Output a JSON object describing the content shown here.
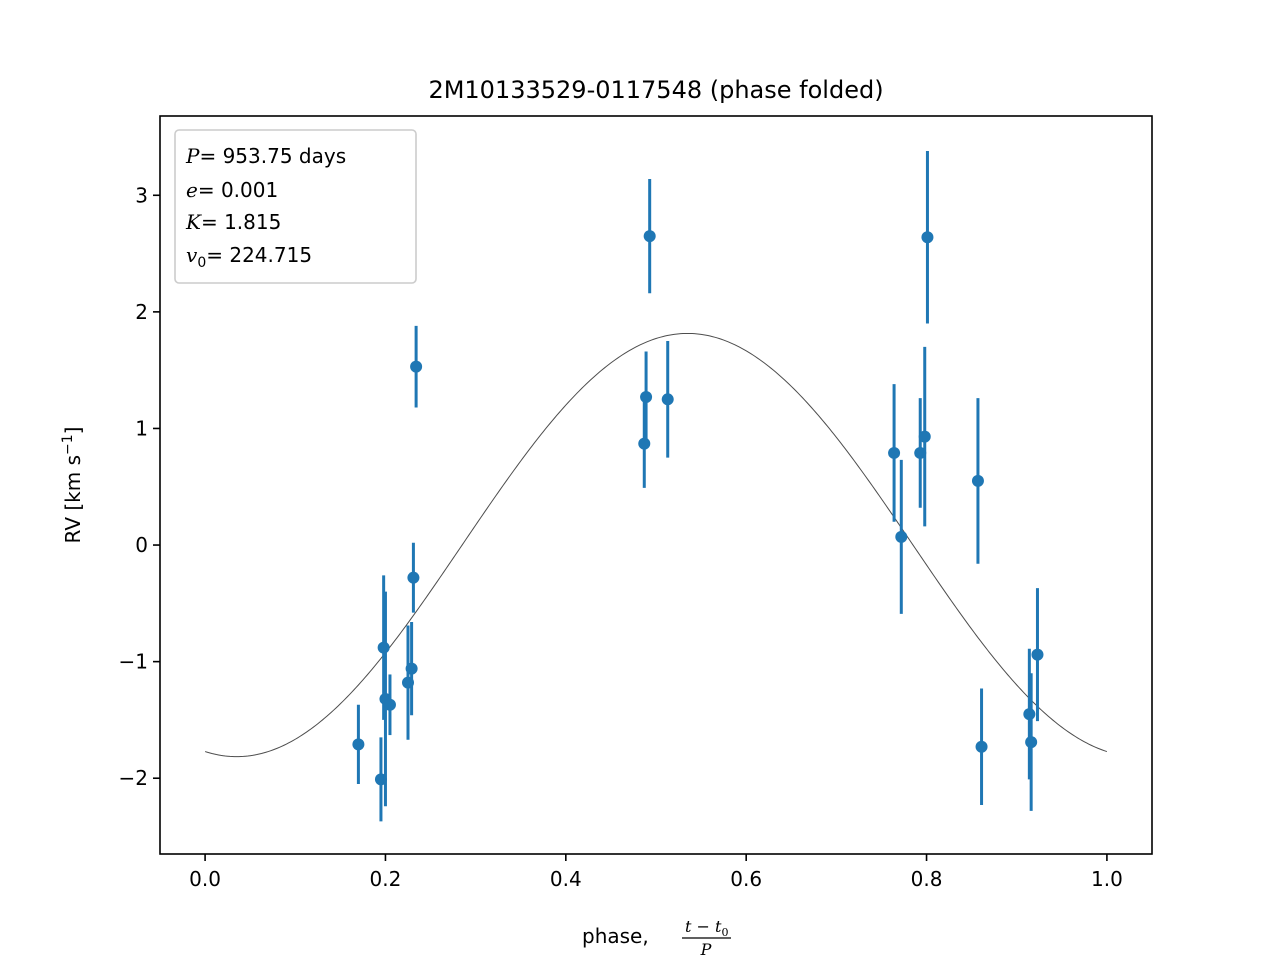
{
  "chart_data": {
    "type": "scatter",
    "title": "2M10133529-0117548 (phase folded)",
    "xlabel": "phase, ",
    "xlabel_frac": {
      "num": "t − t",
      "num_sub": "0",
      "den": "P"
    },
    "ylabel": "RV [km s",
    "ylabel_sup": "−1",
    "ylabel_close": "]",
    "xlim": [
      -0.05,
      1.05
    ],
    "ylim": [
      -2.65,
      3.68
    ],
    "xticks": [
      0.0,
      0.2,
      0.4,
      0.6,
      0.8,
      1.0
    ],
    "xtick_labels": [
      "0.0",
      "0.2",
      "0.4",
      "0.6",
      "0.8",
      "1.0"
    ],
    "yticks": [
      -2,
      -1,
      0,
      1,
      2,
      3
    ],
    "ytick_labels": [
      "−2",
      "−1",
      "0",
      "1",
      "2",
      "3"
    ],
    "params": {
      "P_label": "P",
      "P_value": "= 953.75 days",
      "e_label": "e",
      "e_value": "= 0.001",
      "K_label": "K",
      "K_value": "= 1.815",
      "v_label": "v",
      "v_sub": "0",
      "v_value": "= 224.715"
    },
    "model": {
      "K": 1.815,
      "v_offset": 0.0,
      "peak_phase": 0.535,
      "color": "#4d4d4d"
    },
    "series": [
      {
        "color": "#1f77b4",
        "points": [
          {
            "x": 0.17,
            "y": -1.71,
            "err": 0.34
          },
          {
            "x": 0.195,
            "y": -2.01,
            "err": 0.36
          },
          {
            "x": 0.198,
            "y": -0.88,
            "err": 0.62
          },
          {
            "x": 0.2,
            "y": -1.32,
            "err": 0.92
          },
          {
            "x": 0.205,
            "y": -1.37,
            "err": 0.26
          },
          {
            "x": 0.225,
            "y": -1.18,
            "err": 0.49
          },
          {
            "x": 0.229,
            "y": -1.06,
            "err": 0.4
          },
          {
            "x": 0.231,
            "y": -0.28,
            "err": 0.3
          },
          {
            "x": 0.234,
            "y": 1.53,
            "err": 0.35
          },
          {
            "x": 0.487,
            "y": 0.87,
            "err": 0.38
          },
          {
            "x": 0.489,
            "y": 1.27,
            "err": 0.39
          },
          {
            "x": 0.493,
            "y": 2.65,
            "err": 0.49
          },
          {
            "x": 0.513,
            "y": 1.25,
            "err": 0.5
          },
          {
            "x": 0.764,
            "y": 0.79,
            "err": 0.59
          },
          {
            "x": 0.772,
            "y": 0.07,
            "err": 0.66
          },
          {
            "x": 0.793,
            "y": 0.79,
            "err": 0.47
          },
          {
            "x": 0.798,
            "y": 0.93,
            "err": 0.77
          },
          {
            "x": 0.801,
            "y": 2.64,
            "err": 0.74
          },
          {
            "x": 0.857,
            "y": 0.55,
            "err": 0.71
          },
          {
            "x": 0.861,
            "y": -1.73,
            "err": 0.5
          },
          {
            "x": 0.914,
            "y": -1.45,
            "err": 0.56
          },
          {
            "x": 0.916,
            "y": -1.69,
            "err": 0.59
          },
          {
            "x": 0.923,
            "y": -0.94,
            "err": 0.57
          }
        ]
      }
    ],
    "legend_position": "upper left",
    "grid": false
  }
}
